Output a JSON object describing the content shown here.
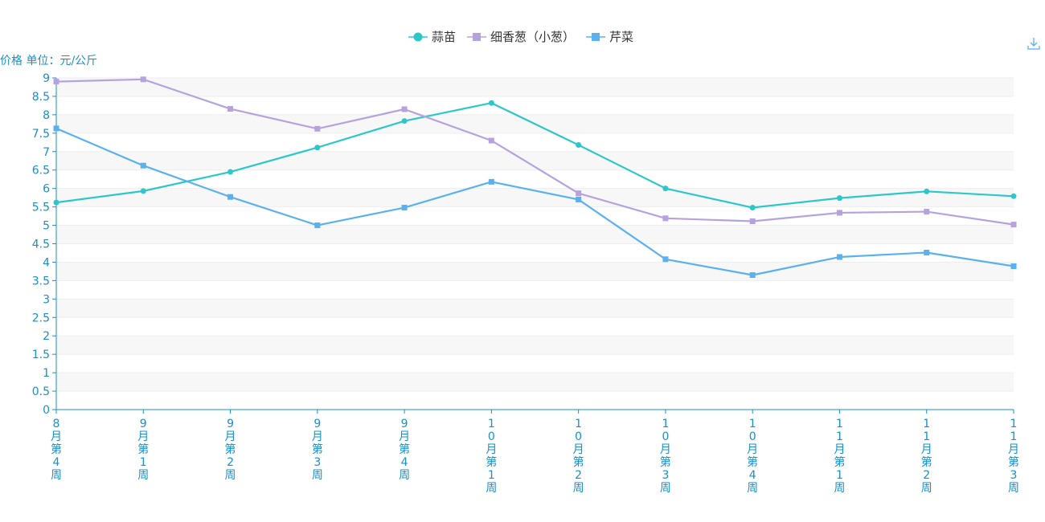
{
  "chart_data": {
    "type": "line",
    "title": "",
    "ylabel": "价格 单位：元/公斤",
    "xlabel": "",
    "ylim": [
      0,
      9
    ],
    "yticks": [
      0,
      0.5,
      1,
      1.5,
      2,
      2.5,
      3,
      3.5,
      4,
      4.5,
      5,
      5.5,
      6,
      6.5,
      7,
      7.5,
      8,
      8.5,
      9
    ],
    "categories": [
      "8月第4周",
      "9月第1周",
      "9月第2周",
      "9月第3周",
      "9月第4周",
      "10月第1周",
      "10月第2周",
      "10月第3周",
      "10月第4周",
      "11月第1周",
      "11月第2周",
      "11月第3周"
    ],
    "legend_position": "top-center",
    "series": [
      {
        "name": "蒜苗",
        "marker": "circle",
        "color": "#2ec7c9",
        "values": [
          5.62,
          5.93,
          6.45,
          7.11,
          7.83,
          8.32,
          7.18,
          6.0,
          5.48,
          5.74,
          5.92,
          5.79
        ]
      },
      {
        "name": "细香葱（小葱）",
        "marker": "square",
        "color": "#b6a2de",
        "values": [
          8.9,
          8.96,
          8.16,
          7.62,
          8.15,
          7.3,
          5.87,
          5.19,
          5.11,
          5.34,
          5.37,
          5.02
        ]
      },
      {
        "name": "芹菜",
        "marker": "square",
        "color": "#5ab1ef",
        "values": [
          7.63,
          6.62,
          5.77,
          5.0,
          5.48,
          6.18,
          5.7,
          4.08,
          3.65,
          4.14,
          4.26,
          3.89
        ]
      }
    ]
  },
  "toolbar": {
    "download_icon": "download-icon"
  }
}
